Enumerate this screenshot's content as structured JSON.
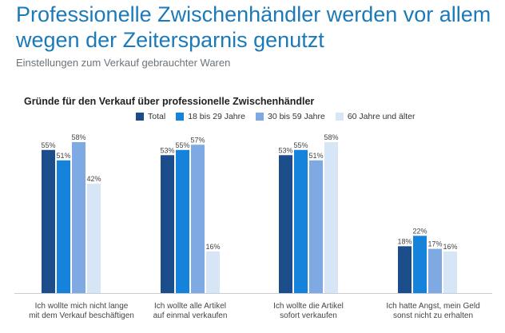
{
  "header": {
    "title": "Professionelle Zwischenhändler werden vor allem wegen der Zeitersparnis genutzt",
    "subtitle": "Einstellungen zum Verkauf gebrauchter Waren"
  },
  "colors": {
    "total": "#1a4d8a",
    "age_18_29": "#1582dc",
    "age_30_59": "#7ea9e3",
    "age_60_plus": "#d6e6f7",
    "title": "#1b7ab8"
  },
  "chart_data": {
    "type": "bar",
    "title": "Gründe für den Verkauf über professionelle Zwischenhändler",
    "categories": [
      [
        "Ich wollte mich nicht lange",
        "mit dem Verkauf beschäftigen"
      ],
      [
        "Ich wollte alle Artikel",
        "auf einmal verkaufen"
      ],
      [
        "Ich wollte die Artikel",
        "sofort verkaufen"
      ],
      [
        "Ich hatte Angst, mein Geld",
        "sonst nicht zu erhalten"
      ]
    ],
    "series": [
      {
        "name": "Total",
        "color": "#1a4d8a",
        "values": [
          55,
          53,
          53,
          18
        ]
      },
      {
        "name": "18 bis 29 Jahre",
        "color": "#1582dc",
        "values": [
          51,
          55,
          55,
          22
        ]
      },
      {
        "name": "30 bis 59 Jahre",
        "color": "#7ea9e3",
        "values": [
          58,
          57,
          51,
          17
        ]
      },
      {
        "name": "60 Jahre und älter",
        "color": "#d6e6f7",
        "values": [
          42,
          16,
          58,
          16
        ]
      }
    ],
    "value_suffix": "%",
    "ylim": [
      0,
      58
    ],
    "legend_position": "top",
    "grid": false
  }
}
